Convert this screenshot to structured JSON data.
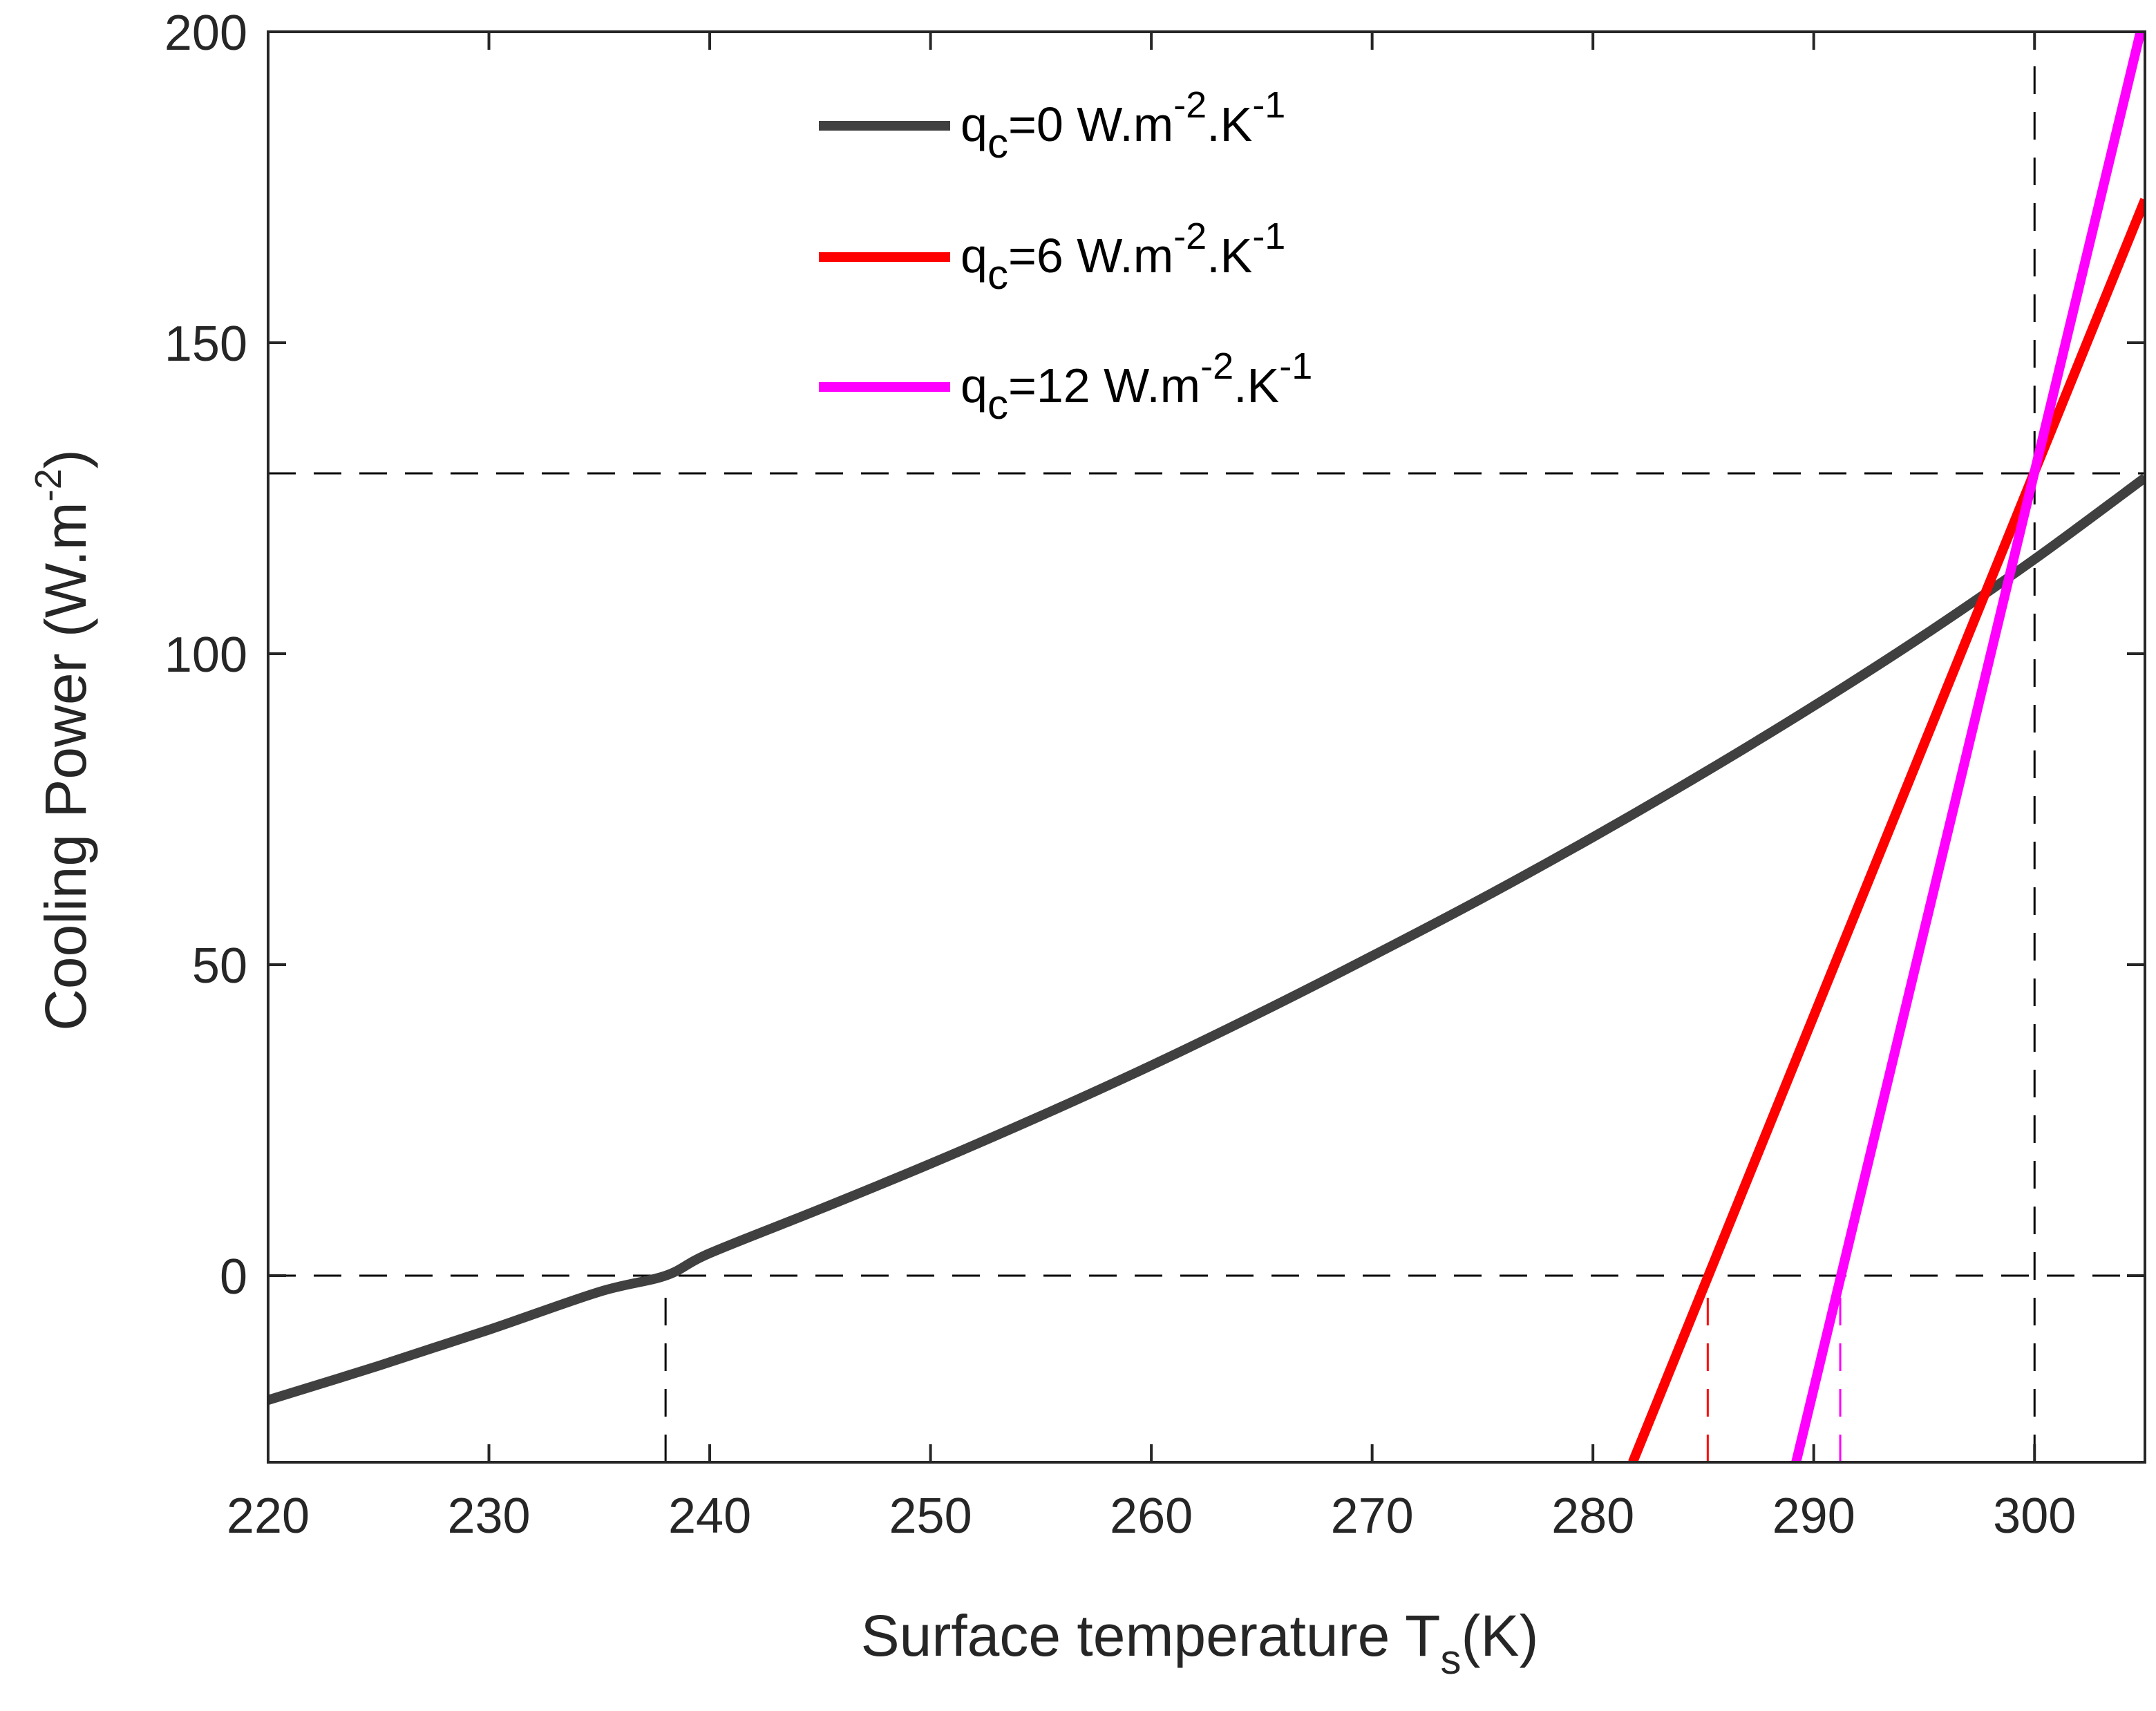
{
  "chart_data": {
    "type": "line",
    "xlabel": {
      "main": "Surface temperature T",
      "sub": "s",
      "tail": "(K)"
    },
    "ylabel": {
      "main": "Cooling Power (W.m",
      "sup": "-2",
      "tail": ")"
    },
    "xlim": [
      220,
      305
    ],
    "ylim": [
      -30,
      200
    ],
    "xticks": [
      "220",
      "230",
      "240",
      "250",
      "260",
      "270",
      "280",
      "290",
      "300"
    ],
    "yticks": [
      "0",
      "50",
      "100",
      "150",
      "200"
    ],
    "series": [
      {
        "name": "qc=0",
        "color": "#404040",
        "x": [
          220,
          225,
          230,
          235,
          238,
          240,
          245,
          250,
          255,
          260,
          265,
          270,
          275,
          280,
          285,
          290,
          295,
          300,
          305
        ],
        "y": [
          -20,
          -14.5,
          -8.7,
          -2.6,
          0,
          3.6,
          10.7,
          18,
          25.7,
          33.8,
          42.4,
          51.4,
          60.7,
          70.5,
          80.8,
          91.6,
          103.0,
          115.2,
          128.3
        ]
      },
      {
        "name": "qc=6",
        "color": "#ff0000",
        "x": [
          281.8,
          305
        ],
        "y": [
          -30,
          173
        ]
      },
      {
        "name": "qc=12",
        "color": "#ff00ff",
        "x": [
          289.2,
          304.8
        ],
        "y": [
          -30,
          200
        ]
      }
    ],
    "legend": {
      "placement": "top-center",
      "entries": [
        {
          "base": "q",
          "sub": "c",
          "mid": "=0 W.m",
          "sup1": "-2",
          "mid2": ".K",
          "sup2": "-1",
          "color": "#404040"
        },
        {
          "base": "q",
          "sub": "c",
          "mid": "=6 W.m",
          "sup1": "-2",
          "mid2": ".K",
          "sup2": "-1",
          "color": "#ff0000"
        },
        {
          "base": "q",
          "sub": "c",
          "mid": "=12 W.m",
          "sup1": "-2",
          "mid2": ".K",
          "sup2": "-1",
          "color": "#ff00ff"
        }
      ]
    },
    "reference_lines": {
      "horizontal": [
        0,
        129
      ],
      "vertical": [
        {
          "x": 238.0,
          "from": -30,
          "to": 0,
          "color": "#000000"
        },
        {
          "x": 285.2,
          "from": -30,
          "to": 0,
          "color": "#ff0000"
        },
        {
          "x": 291.2,
          "from": -30,
          "to": 0,
          "color": "#ff00ff"
        },
        {
          "x": 300.0,
          "from": -30,
          "to": 200,
          "color": "#000000"
        }
      ]
    }
  }
}
